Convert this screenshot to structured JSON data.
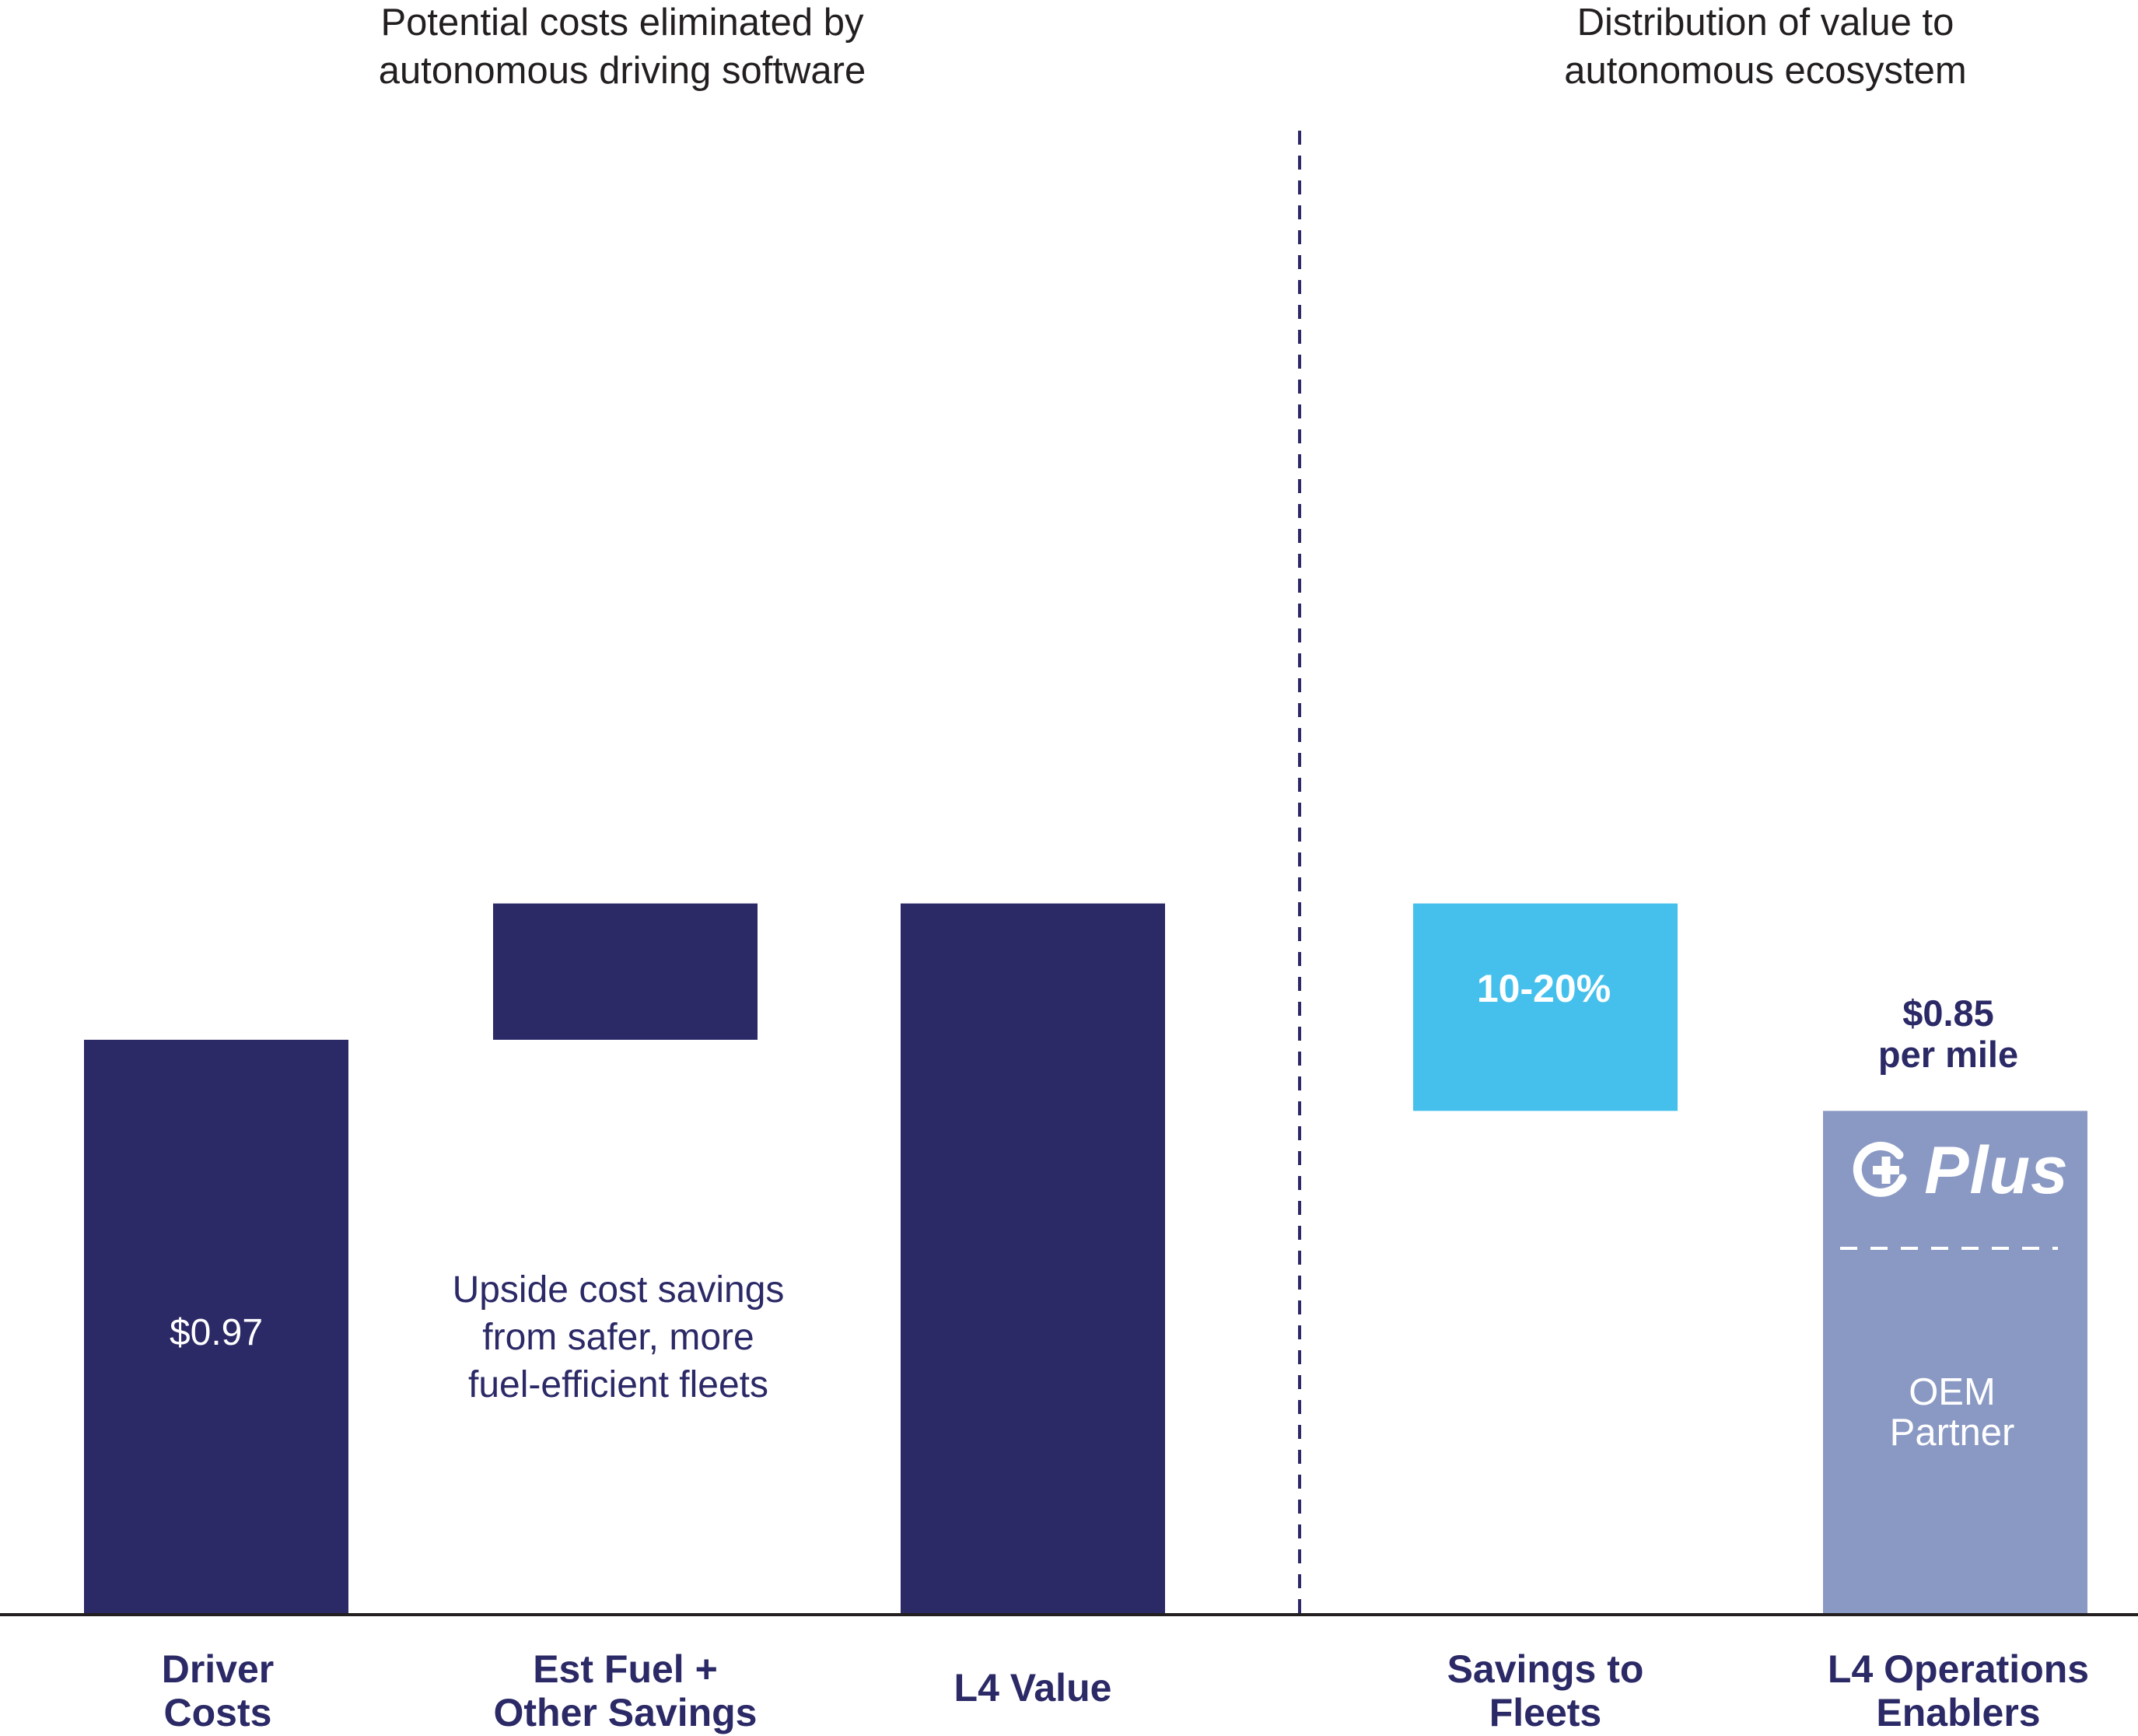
{
  "titles": {
    "left": "Potential costs eliminated by\nautonomous driving software",
    "right": "Distribution of value to\nautonomous ecosystem"
  },
  "colors": {
    "navy": "#2b2966",
    "cyan": "#45c0ec",
    "lavender": "#8a99c4",
    "axis": "#231f20",
    "white": "#ffffff"
  },
  "chart_data": {
    "type": "bar",
    "subtype": "waterfall",
    "categories": [
      "Driver\nCosts",
      "Est Fuel +\nOther Savings",
      "L4 Value",
      "Savings to\nFleets",
      "L4 Operations\nEnablers"
    ],
    "values": [
      {
        "category": "Driver\nCosts",
        "start": 0,
        "end": 0.97,
        "label": "$0.97"
      },
      {
        "category": "Est Fuel +\nOther Savings",
        "start": 0.97,
        "end": 1.2
      },
      {
        "category": "L4 Value",
        "start": 0,
        "end": 1.2
      },
      {
        "category": "Savings to\nFleets",
        "start": 0.85,
        "end": 1.2,
        "label": "10-20%"
      },
      {
        "category": "L4 Operations\nEnablers",
        "start": 0,
        "end": 0.85,
        "label": "$0.85\nper mile"
      }
    ],
    "annotations": [
      "Upside cost savings\nfrom safer, more\nfuel-efficient fleets"
    ],
    "stack_segments": [
      "Plus",
      "OEM\nPartner"
    ],
    "ylim": [
      0,
      2.4
    ],
    "grid": false,
    "legend": "none"
  }
}
